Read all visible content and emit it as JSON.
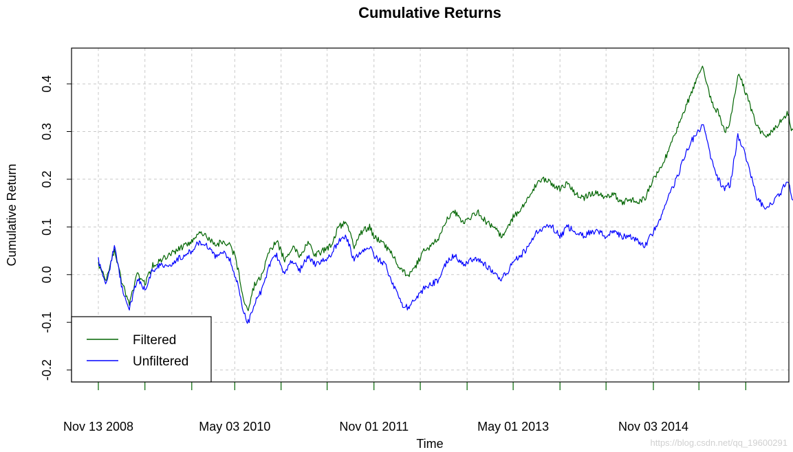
{
  "chart_data": {
    "type": "line",
    "title": "Cumulative Returns",
    "xlabel": "Time",
    "ylabel": "Cumulative Return",
    "x_tick_labels": [
      "Nov 13 2008",
      "May 03 2010",
      "Nov 01 2011",
      "May 01 2013",
      "Nov 03 2014"
    ],
    "y_ticks": [
      -0.2,
      -0.1,
      0.0,
      0.1,
      0.2,
      0.3,
      0.4
    ],
    "ylim": [
      -0.225,
      0.475
    ],
    "grid": true,
    "legend_position": "bottom-left",
    "series": [
      {
        "name": "Filtered",
        "color": "#006400",
        "points": [
          [
            "2008-11-13",
            0.02
          ],
          [
            "2008-12-15",
            -0.01
          ],
          [
            "2009-01-15",
            0.05
          ],
          [
            "2009-02-15",
            -0.02
          ],
          [
            "2009-03-15",
            -0.06
          ],
          [
            "2009-04-15",
            0.0
          ],
          [
            "2009-05-15",
            -0.02
          ],
          [
            "2009-06-15",
            0.02
          ],
          [
            "2009-07-15",
            0.03
          ],
          [
            "2009-08-15",
            0.04
          ],
          [
            "2009-09-15",
            0.05
          ],
          [
            "2009-10-15",
            0.06
          ],
          [
            "2009-11-15",
            0.07
          ],
          [
            "2009-12-15",
            0.09
          ],
          [
            "2010-01-15",
            0.08
          ],
          [
            "2010-02-15",
            0.06
          ],
          [
            "2010-03-15",
            0.07
          ],
          [
            "2010-04-15",
            0.06
          ],
          [
            "2010-05-03",
            0.04
          ],
          [
            "2010-05-20",
            0.0
          ],
          [
            "2010-06-05",
            -0.05
          ],
          [
            "2010-06-25",
            -0.07
          ],
          [
            "2010-07-20",
            -0.02
          ],
          [
            "2010-08-20",
            0.0
          ],
          [
            "2010-09-15",
            0.05
          ],
          [
            "2010-10-15",
            0.07
          ],
          [
            "2010-11-15",
            0.03
          ],
          [
            "2010-12-15",
            0.06
          ],
          [
            "2011-01-15",
            0.04
          ],
          [
            "2011-02-15",
            0.07
          ],
          [
            "2011-03-15",
            0.04
          ],
          [
            "2011-04-15",
            0.05
          ],
          [
            "2011-05-15",
            0.06
          ],
          [
            "2011-06-15",
            0.1
          ],
          [
            "2011-07-15",
            0.11
          ],
          [
            "2011-08-15",
            0.06
          ],
          [
            "2011-09-15",
            0.09
          ],
          [
            "2011-10-15",
            0.1
          ],
          [
            "2011-11-01",
            0.08
          ],
          [
            "2011-12-15",
            0.06
          ],
          [
            "2012-01-15",
            0.04
          ],
          [
            "2012-02-15",
            0.01
          ],
          [
            "2012-03-15",
            0.0
          ],
          [
            "2012-04-15",
            0.02
          ],
          [
            "2012-05-15",
            0.05
          ],
          [
            "2012-06-15",
            0.06
          ],
          [
            "2012-07-15",
            0.08
          ],
          [
            "2012-08-15",
            0.12
          ],
          [
            "2012-09-15",
            0.13
          ],
          [
            "2012-10-15",
            0.11
          ],
          [
            "2012-11-15",
            0.12
          ],
          [
            "2012-12-15",
            0.13
          ],
          [
            "2013-01-15",
            0.11
          ],
          [
            "2013-02-15",
            0.1
          ],
          [
            "2013-03-15",
            0.08
          ],
          [
            "2013-04-15",
            0.1
          ],
          [
            "2013-05-01",
            0.12
          ],
          [
            "2013-06-01",
            0.14
          ],
          [
            "2013-07-01",
            0.16
          ],
          [
            "2013-08-01",
            0.19
          ],
          [
            "2013-09-01",
            0.2
          ],
          [
            "2013-10-01",
            0.19
          ],
          [
            "2013-11-01",
            0.18
          ],
          [
            "2013-12-01",
            0.19
          ],
          [
            "2014-01-01",
            0.17
          ],
          [
            "2014-02-01",
            0.16
          ],
          [
            "2014-03-01",
            0.17
          ],
          [
            "2014-04-01",
            0.17
          ],
          [
            "2014-05-01",
            0.16
          ],
          [
            "2014-06-01",
            0.17
          ],
          [
            "2014-07-01",
            0.15
          ],
          [
            "2014-08-01",
            0.16
          ],
          [
            "2014-09-01",
            0.15
          ],
          [
            "2014-10-01",
            0.16
          ],
          [
            "2014-11-03",
            0.2
          ],
          [
            "2014-12-01",
            0.22
          ],
          [
            "2015-01-01",
            0.26
          ],
          [
            "2015-02-01",
            0.3
          ],
          [
            "2015-03-01",
            0.34
          ],
          [
            "2015-04-01",
            0.38
          ],
          [
            "2015-05-01",
            0.42
          ],
          [
            "2015-05-15",
            0.44
          ],
          [
            "2015-06-01",
            0.4
          ],
          [
            "2015-06-20",
            0.36
          ],
          [
            "2015-07-15",
            0.34
          ],
          [
            "2015-08-10",
            0.3
          ],
          [
            "2015-09-01",
            0.32
          ],
          [
            "2015-10-01",
            0.42
          ],
          [
            "2015-10-20",
            0.4
          ],
          [
            "2015-11-15",
            0.36
          ],
          [
            "2015-12-15",
            0.31
          ],
          [
            "2016-01-15",
            0.29
          ],
          [
            "2016-02-15",
            0.3
          ],
          [
            "2016-03-15",
            0.32
          ],
          [
            "2016-04-15",
            0.34
          ],
          [
            "2016-05-01",
            0.3
          ],
          [
            "2016-05-20",
            0.3
          ]
        ]
      },
      {
        "name": "Unfiltered",
        "color": "#0000ff",
        "points": [
          [
            "2008-11-13",
            0.03
          ],
          [
            "2008-12-15",
            -0.02
          ],
          [
            "2009-01-15",
            0.06
          ],
          [
            "2009-02-15",
            -0.03
          ],
          [
            "2009-03-15",
            -0.07
          ],
          [
            "2009-04-15",
            -0.01
          ],
          [
            "2009-05-15",
            -0.03
          ],
          [
            "2009-06-15",
            0.01
          ],
          [
            "2009-07-15",
            0.02
          ],
          [
            "2009-08-15",
            0.02
          ],
          [
            "2009-09-15",
            0.03
          ],
          [
            "2009-10-15",
            0.04
          ],
          [
            "2009-11-15",
            0.05
          ],
          [
            "2009-12-15",
            0.07
          ],
          [
            "2010-01-15",
            0.06
          ],
          [
            "2010-02-15",
            0.04
          ],
          [
            "2010-03-15",
            0.05
          ],
          [
            "2010-04-15",
            0.03
          ],
          [
            "2010-05-03",
            0.0
          ],
          [
            "2010-05-20",
            -0.03
          ],
          [
            "2010-06-05",
            -0.08
          ],
          [
            "2010-06-25",
            -0.1
          ],
          [
            "2010-07-20",
            -0.06
          ],
          [
            "2010-08-20",
            -0.03
          ],
          [
            "2010-09-15",
            0.02
          ],
          [
            "2010-10-15",
            0.04
          ],
          [
            "2010-11-15",
            0.0
          ],
          [
            "2010-12-15",
            0.03
          ],
          [
            "2011-01-15",
            0.01
          ],
          [
            "2011-02-15",
            0.04
          ],
          [
            "2011-03-15",
            0.02
          ],
          [
            "2011-04-15",
            0.03
          ],
          [
            "2011-05-15",
            0.04
          ],
          [
            "2011-06-15",
            0.07
          ],
          [
            "2011-07-15",
            0.08
          ],
          [
            "2011-08-15",
            0.03
          ],
          [
            "2011-09-15",
            0.05
          ],
          [
            "2011-10-15",
            0.06
          ],
          [
            "2011-11-01",
            0.04
          ],
          [
            "2011-12-15",
            0.02
          ],
          [
            "2012-01-15",
            -0.02
          ],
          [
            "2012-02-15",
            -0.06
          ],
          [
            "2012-03-15",
            -0.07
          ],
          [
            "2012-04-15",
            -0.05
          ],
          [
            "2012-05-15",
            -0.03
          ],
          [
            "2012-06-15",
            -0.02
          ],
          [
            "2012-07-15",
            -0.01
          ],
          [
            "2012-08-15",
            0.03
          ],
          [
            "2012-09-15",
            0.04
          ],
          [
            "2012-10-15",
            0.02
          ],
          [
            "2012-11-15",
            0.03
          ],
          [
            "2012-12-15",
            0.03
          ],
          [
            "2013-01-15",
            0.02
          ],
          [
            "2013-02-15",
            0.0
          ],
          [
            "2013-03-15",
            -0.01
          ],
          [
            "2013-04-15",
            0.01
          ],
          [
            "2013-05-01",
            0.03
          ],
          [
            "2013-06-01",
            0.04
          ],
          [
            "2013-07-01",
            0.06
          ],
          [
            "2013-08-01",
            0.09
          ],
          [
            "2013-09-01",
            0.1
          ],
          [
            "2013-10-01",
            0.1
          ],
          [
            "2013-11-01",
            0.08
          ],
          [
            "2013-12-01",
            0.1
          ],
          [
            "2014-01-01",
            0.09
          ],
          [
            "2014-02-01",
            0.08
          ],
          [
            "2014-03-01",
            0.09
          ],
          [
            "2014-04-01",
            0.09
          ],
          [
            "2014-05-01",
            0.08
          ],
          [
            "2014-06-01",
            0.09
          ],
          [
            "2014-07-01",
            0.08
          ],
          [
            "2014-08-01",
            0.08
          ],
          [
            "2014-09-01",
            0.07
          ],
          [
            "2014-10-01",
            0.06
          ],
          [
            "2014-11-03",
            0.09
          ],
          [
            "2014-12-01",
            0.12
          ],
          [
            "2015-01-01",
            0.16
          ],
          [
            "2015-02-01",
            0.2
          ],
          [
            "2015-03-01",
            0.24
          ],
          [
            "2015-04-01",
            0.28
          ],
          [
            "2015-05-01",
            0.3
          ],
          [
            "2015-05-15",
            0.32
          ],
          [
            "2015-06-01",
            0.28
          ],
          [
            "2015-06-20",
            0.24
          ],
          [
            "2015-07-15",
            0.2
          ],
          [
            "2015-08-10",
            0.18
          ],
          [
            "2015-09-01",
            0.19
          ],
          [
            "2015-10-01",
            0.29
          ],
          [
            "2015-10-20",
            0.27
          ],
          [
            "2015-11-15",
            0.22
          ],
          [
            "2015-12-15",
            0.16
          ],
          [
            "2016-01-15",
            0.14
          ],
          [
            "2016-02-15",
            0.15
          ],
          [
            "2016-03-15",
            0.17
          ],
          [
            "2016-04-15",
            0.2
          ],
          [
            "2016-05-01",
            0.16
          ],
          [
            "2016-05-20",
            0.15
          ]
        ]
      }
    ]
  },
  "watermark": "https://blog.csdn.net/qq_19600291"
}
